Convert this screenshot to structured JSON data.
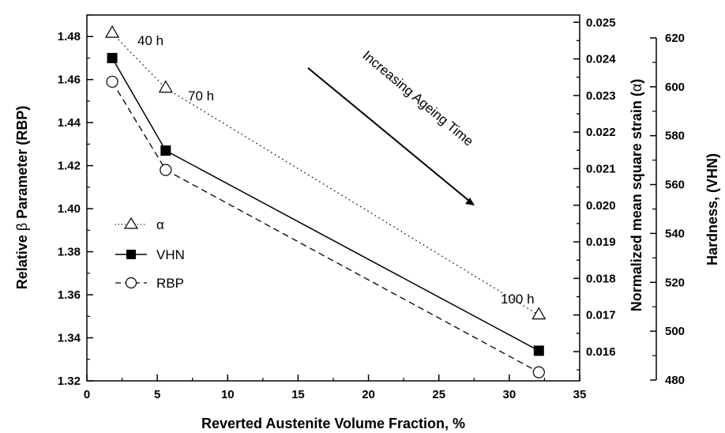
{
  "chart_data": {
    "type": "line",
    "x": [
      1.8,
      5.6,
      32.1
    ],
    "xlabel": "Reverted Austenite Volume Fraction, %",
    "xlim": [
      0,
      35
    ],
    "x_ticks": [
      "0",
      "5",
      "10",
      "15",
      "20",
      "25",
      "30",
      "35"
    ],
    "y_left": {
      "label_prefix": "Relative ",
      "label_symbol": "β",
      "label_suffix": " Parameter (RBP)",
      "lim": [
        1.32,
        1.49
      ],
      "ticks": [
        "1.32",
        "1.34",
        "1.36",
        "1.38",
        "1.40",
        "1.42",
        "1.44",
        "1.46",
        "1.48"
      ]
    },
    "y_mid": {
      "label_prefix": "Normalized mean square strain (",
      "label_symbol": "α",
      "label_suffix": ")",
      "lim": [
        0.0152,
        0.0252
      ],
      "ticks": [
        "0.016",
        "0.017",
        "0.018",
        "0.019",
        "0.020",
        "0.021",
        "0.022",
        "0.023",
        "0.024",
        "0.025"
      ]
    },
    "y_right": {
      "label": "Hardness, (VHN)",
      "lim": [
        480,
        620
      ],
      "ticks": [
        "480",
        "500",
        "520",
        "540",
        "560",
        "580",
        "600",
        "620"
      ]
    },
    "series": [
      {
        "name": "α",
        "axis": "mid",
        "values": [
          0.0247,
          0.0232,
          0.017
        ],
        "marker": "triangle-open",
        "line": "dotted"
      },
      {
        "name": "VHN",
        "axis": "left",
        "values": [
          1.47,
          1.427,
          1.334
        ],
        "marker": "square-filled",
        "line": "solid"
      },
      {
        "name": "RBP",
        "axis": "left",
        "values": [
          1.459,
          1.418,
          1.324
        ],
        "marker": "circle-open",
        "line": "dashed"
      }
    ],
    "point_labels": [
      "40 h",
      "70 h",
      "100 h"
    ],
    "arrow_label": "Increasing Ageing Time",
    "grid": false,
    "legend": "left-bottom"
  }
}
